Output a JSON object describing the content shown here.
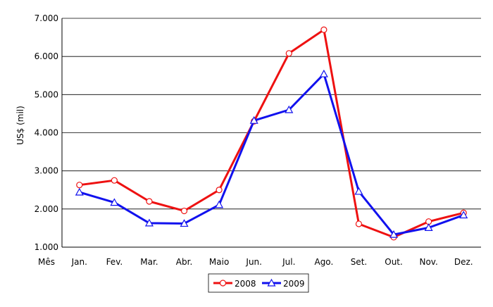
{
  "chart_data": {
    "type": "line",
    "ylabel": "US$ (mil)",
    "xlabel": "Mês",
    "categories": [
      "Jan.",
      "Fev.",
      "Mar.",
      "Abr.",
      "Maio",
      "Jun.",
      "Jul.",
      "Ago.",
      "Set.",
      "Out.",
      "Nov.",
      "Dez."
    ],
    "y_ticks": [
      "1.000",
      "2.000",
      "3.000",
      "4.000",
      "5.000",
      "6.000",
      "7.000"
    ],
    "ylim": [
      1000,
      7000
    ],
    "grid": "horizontal",
    "legend_position": "bottom",
    "series": [
      {
        "name": "2008",
        "color": "#ee1111",
        "marker": "circle",
        "values": [
          2630,
          2750,
          2200,
          1950,
          2500,
          4300,
          6080,
          6700,
          1610,
          1260,
          1670,
          1900
        ]
      },
      {
        "name": "2009",
        "color": "#1111ee",
        "marker": "triangle",
        "values": [
          2440,
          2170,
          1630,
          1620,
          2110,
          4320,
          4600,
          5540,
          2460,
          1330,
          1510,
          1840
        ]
      }
    ]
  }
}
